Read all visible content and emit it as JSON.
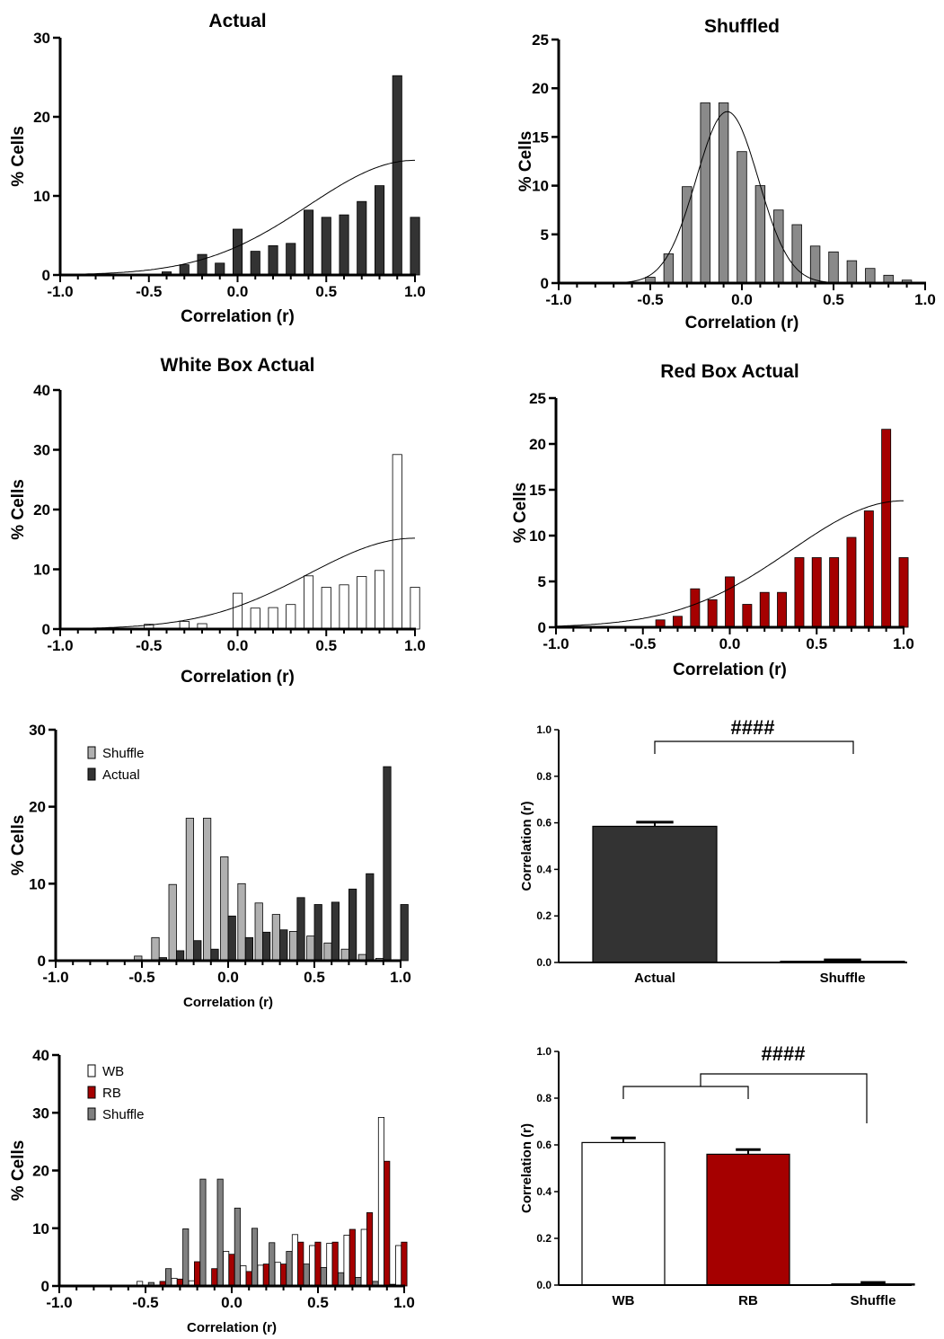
{
  "chart_data": [
    {
      "id": "actual",
      "type": "bar",
      "title": "Actual",
      "xlabel": "Correlation (r)",
      "ylabel": "% Cells",
      "xlim": [
        -1.0,
        1.0
      ],
      "ylim": [
        0,
        30
      ],
      "xticks": [
        "-1.0",
        "-0.5",
        "0.0",
        "0.5",
        "1.0"
      ],
      "yticks": [
        "0",
        "10",
        "20",
        "30"
      ],
      "series": [
        {
          "color": "#333333",
          "x": [
            -0.4,
            -0.3,
            -0.2,
            -0.1,
            0.0,
            0.1,
            0.2,
            0.3,
            0.4,
            0.5,
            0.6,
            0.7,
            0.8,
            0.9,
            1.0
          ],
          "values": [
            0.4,
            1.3,
            2.6,
            1.5,
            5.8,
            3.0,
            3.7,
            4.0,
            8.2,
            7.3,
            7.6,
            9.3,
            11.3,
            25.2,
            7.3
          ]
        }
      ],
      "fit": {
        "type": "gaussian",
        "peak": 14.5,
        "center": 1.0,
        "width": 0.6
      }
    },
    {
      "id": "shuffled",
      "type": "bar",
      "title": "Shuffled",
      "xlabel": "Correlation (r)",
      "ylabel": "% Cells",
      "xlim": [
        -1.0,
        1.0
      ],
      "ylim": [
        0,
        25
      ],
      "xticks": [
        "-1.0",
        "-0.5",
        "0.0",
        "0.5",
        "1.0"
      ],
      "yticks": [
        "0",
        "5",
        "10",
        "15",
        "20",
        "25"
      ],
      "series": [
        {
          "color": "#8a8a8a",
          "x": [
            -0.5,
            -0.4,
            -0.3,
            -0.2,
            -0.1,
            0.0,
            0.1,
            0.2,
            0.3,
            0.4,
            0.5,
            0.6,
            0.7,
            0.8,
            0.9
          ],
          "values": [
            0.6,
            3.0,
            9.9,
            18.5,
            18.5,
            13.5,
            10.0,
            7.5,
            6.0,
            3.8,
            3.2,
            2.3,
            1.5,
            0.8,
            0.3
          ]
        }
      ],
      "fit": {
        "type": "gaussian",
        "peak": 17.6,
        "center": -0.08,
        "width": 0.17
      }
    },
    {
      "id": "white-box",
      "type": "bar",
      "title": "White Box Actual",
      "xlabel": "Correlation (r)",
      "ylabel": "% Cells",
      "xlim": [
        -1.0,
        1.0
      ],
      "ylim": [
        0,
        40
      ],
      "xticks": [
        "-1.0",
        "-0.5",
        "0.0",
        "0.5",
        "1.0"
      ],
      "yticks": [
        "0",
        "10",
        "20",
        "30",
        "40"
      ],
      "series": [
        {
          "color": "#ffffff",
          "x": [
            -0.5,
            -0.3,
            -0.2,
            0.0,
            0.1,
            0.2,
            0.3,
            0.4,
            0.5,
            0.6,
            0.7,
            0.8,
            0.9,
            1.0
          ],
          "values": [
            0.8,
            1.3,
            0.9,
            6.0,
            3.5,
            3.6,
            4.1,
            8.9,
            7.0,
            7.4,
            8.8,
            9.8,
            29.2,
            7.0
          ]
        }
      ],
      "fit": {
        "type": "gaussian",
        "peak": 15.2,
        "center": 1.0,
        "width": 0.6
      }
    },
    {
      "id": "red-box",
      "type": "bar",
      "title": "Red Box Actual",
      "xlabel": "Correlation (r)",
      "ylabel": "% Cells",
      "xlim": [
        -1.0,
        1.0
      ],
      "ylim": [
        0,
        25
      ],
      "xticks": [
        "-1.0",
        "-0.5",
        "0.0",
        "0.5",
        "1.0"
      ],
      "yticks": [
        "0",
        "5",
        "10",
        "15",
        "20",
        "25"
      ],
      "series": [
        {
          "color": "#a50000",
          "x": [
            -0.4,
            -0.3,
            -0.2,
            -0.1,
            0.0,
            0.1,
            0.2,
            0.3,
            0.4,
            0.5,
            0.6,
            0.7,
            0.8,
            0.9,
            1.0
          ],
          "values": [
            0.8,
            1.2,
            4.2,
            3.0,
            5.5,
            2.5,
            3.8,
            3.8,
            7.6,
            7.6,
            7.6,
            9.8,
            12.7,
            21.6,
            7.6
          ]
        }
      ],
      "fit": {
        "type": "gaussian",
        "peak": 13.8,
        "center": 1.0,
        "width": 0.65
      }
    },
    {
      "id": "combined-actual-shuffle",
      "type": "bar",
      "title": "",
      "xlabel": "Correlation (r)",
      "ylabel": "% Cells",
      "xlim": [
        -1.0,
        1.0
      ],
      "ylim": [
        0,
        30
      ],
      "xticks": [
        "-1.0",
        "-0.5",
        "0.0",
        "0.5",
        "1.0"
      ],
      "yticks": [
        "0",
        "10",
        "20",
        "30"
      ],
      "legend": "top-left",
      "series": [
        {
          "name": "Shuffle",
          "color": "#b0b0b0",
          "x": [
            -0.5,
            -0.4,
            -0.3,
            -0.2,
            -0.1,
            0.0,
            0.1,
            0.2,
            0.3,
            0.4,
            0.5,
            0.6,
            0.7,
            0.8,
            0.9
          ],
          "values": [
            0.6,
            3.0,
            9.9,
            18.5,
            18.5,
            13.5,
            10.0,
            7.5,
            6.0,
            3.8,
            3.2,
            2.3,
            1.5,
            0.8,
            0.3
          ]
        },
        {
          "name": "Actual",
          "color": "#333333",
          "x": [
            -0.4,
            -0.3,
            -0.2,
            -0.1,
            0.0,
            0.1,
            0.2,
            0.3,
            0.4,
            0.5,
            0.6,
            0.7,
            0.8,
            0.9,
            1.0
          ],
          "values": [
            0.4,
            1.3,
            2.6,
            1.5,
            5.8,
            3.0,
            3.7,
            4.0,
            8.2,
            7.3,
            7.6,
            9.3,
            11.3,
            25.2,
            7.3
          ]
        }
      ]
    },
    {
      "id": "mean-actual-shuffle",
      "type": "bar",
      "title": "",
      "xlabel": "",
      "ylabel": "Correlation (r)",
      "ylim": [
        0,
        1.0
      ],
      "yticks": [
        "0.0",
        "0.2",
        "0.4",
        "0.6",
        "0.8",
        "1.0"
      ],
      "categories": [
        "Actual",
        "Shuffle"
      ],
      "values": [
        0.585,
        0.005
      ],
      "errors": [
        0.018,
        0.006
      ],
      "colors": [
        "#333333",
        "#333333"
      ],
      "significance": "####"
    },
    {
      "id": "combined-wb-rb-shuffle",
      "type": "bar",
      "title": "",
      "xlabel": "Correlation (r)",
      "ylabel": "% Cells",
      "xlim": [
        -1.0,
        1.0
      ],
      "ylim": [
        0,
        40
      ],
      "xticks": [
        "-1.0",
        "-0.5",
        "0.0",
        "0.5",
        "1.0"
      ],
      "yticks": [
        "0",
        "10",
        "20",
        "30",
        "40"
      ],
      "legend": "top-left",
      "series": [
        {
          "name": "WB",
          "color": "#ffffff",
          "x": [
            -0.5,
            -0.3,
            -0.2,
            0.0,
            0.1,
            0.2,
            0.3,
            0.4,
            0.5,
            0.6,
            0.7,
            0.8,
            0.9,
            1.0
          ],
          "values": [
            0.8,
            1.3,
            0.9,
            6.0,
            3.5,
            3.6,
            4.1,
            8.9,
            7.0,
            7.4,
            8.8,
            9.8,
            29.2,
            7.0
          ]
        },
        {
          "name": "RB",
          "color": "#a50000",
          "x": [
            -0.4,
            -0.3,
            -0.2,
            -0.1,
            0.0,
            0.1,
            0.2,
            0.3,
            0.4,
            0.5,
            0.6,
            0.7,
            0.8,
            0.9,
            1.0
          ],
          "values": [
            0.8,
            1.2,
            4.2,
            3.0,
            5.5,
            2.5,
            3.8,
            3.8,
            7.6,
            7.6,
            7.6,
            9.8,
            12.7,
            21.6,
            7.6
          ]
        },
        {
          "name": "Shuffle",
          "color": "#808080",
          "x": [
            -0.5,
            -0.4,
            -0.3,
            -0.2,
            -0.1,
            0.0,
            0.1,
            0.2,
            0.3,
            0.4,
            0.5,
            0.6,
            0.7,
            0.8,
            0.9
          ],
          "values": [
            0.6,
            3.0,
            9.9,
            18.5,
            18.5,
            13.5,
            10.0,
            7.5,
            6.0,
            3.8,
            3.2,
            2.3,
            1.5,
            0.8,
            0.3
          ]
        }
      ]
    },
    {
      "id": "mean-wb-rb-shuffle",
      "type": "bar",
      "title": "",
      "xlabel": "",
      "ylabel": "Correlation (r)",
      "ylim": [
        0,
        1.0
      ],
      "yticks": [
        "0.0",
        "0.2",
        "0.4",
        "0.6",
        "0.8",
        "1.0"
      ],
      "categories": [
        "WB",
        "RB",
        "Shuffle"
      ],
      "values": [
        0.61,
        0.56,
        0.005
      ],
      "errors": [
        0.02,
        0.02,
        0.006
      ],
      "colors": [
        "#ffffff",
        "#a50000",
        "#333333"
      ],
      "significance": "####"
    }
  ]
}
